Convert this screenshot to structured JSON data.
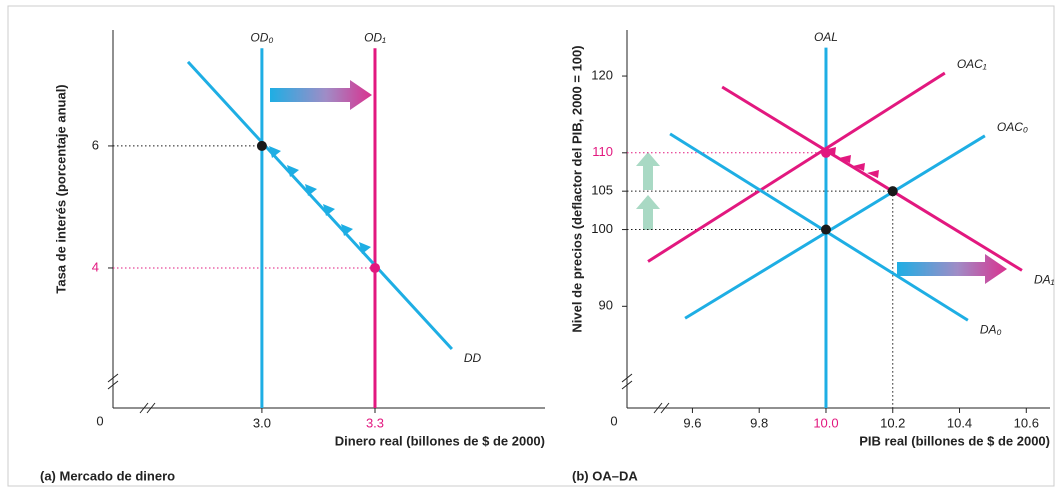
{
  "chart_data": [
    {
      "type": "line",
      "title": "(a) Mercado de dinero",
      "x_label": "Dinero real (billones de $ de 2000)",
      "y_label": "Tasa de interés (porcentaje anual)",
      "origin_label": "0",
      "xlim": [
        2.605,
        3.751
      ],
      "ylim": [
        1.705,
        7.9
      ],
      "xticks": [
        {
          "value": 3.0,
          "label": "3.0"
        },
        3.3
      ],
      "yticks": [
        4,
        6
      ],
      "series": [
        {
          "name": "OD₀",
          "color": "#1eaee4",
          "x": [
            3.0,
            3.0
          ],
          "y": [
            1.705,
            7.6
          ]
        },
        {
          "name": "OD₁",
          "color": "#e2187f",
          "x": [
            3.3,
            3.3
          ],
          "y": [
            1.705,
            7.6
          ]
        },
        {
          "name": "DD",
          "color": "#1eaee4",
          "x": [
            2.804,
            3.504
          ],
          "y": [
            7.377,
            2.672
          ]
        }
      ],
      "points": [
        {
          "x": 3.0,
          "y": 6,
          "color": "#1a1a1a"
        },
        {
          "x": 3.3,
          "y": 4,
          "color": "#e2187f"
        }
      ]
    },
    {
      "type": "line",
      "title": "(b) OA–DA",
      "x_label": "PIB real (billones de $ de 2000)",
      "y_label": "Nivel de precios (deflactor del PIB, 2000 = 100)",
      "origin_label": "0",
      "xlim": [
        9.404,
        10.671
      ],
      "ylim": [
        76.75,
        126
      ],
      "xticks": [
        9.6,
        9.8,
        {
          "value": 10.0,
          "label": "10.0"
        },
        10.2,
        10.4,
        10.6
      ],
      "yticks": [
        90,
        100,
        105,
        110,
        120
      ],
      "series": [
        {
          "name": "OAL",
          "color": "#1eaee4",
          "x": [
            10.0,
            10.0
          ],
          "y": [
            76.75,
            123.7
          ]
        },
        {
          "name": "OAC₀",
          "color": "#1eaee4",
          "x": [
            9.578,
            10.476
          ],
          "y": [
            88.44,
            112.21
          ]
        },
        {
          "name": "OAC₁",
          "color": "#e2187f",
          "x": [
            9.467,
            10.356
          ],
          "y": [
            95.84,
            120.39
          ]
        },
        {
          "name": "DA₀",
          "color": "#1eaee4",
          "x": [
            9.533,
            10.425
          ],
          "y": [
            112.47,
            88.18
          ]
        },
        {
          "name": "DA₁",
          "color": "#e2187f",
          "x": [
            9.689,
            10.587
          ],
          "y": [
            118.57,
            94.68
          ]
        }
      ],
      "points": [
        {
          "x": 10.0,
          "y": 110,
          "color": "#e2187f"
        },
        {
          "x": 10.2,
          "y": 105,
          "color": "#1a1a1a"
        },
        {
          "x": 10.0,
          "y": 100,
          "color": "#1a1a1a"
        }
      ]
    }
  ]
}
